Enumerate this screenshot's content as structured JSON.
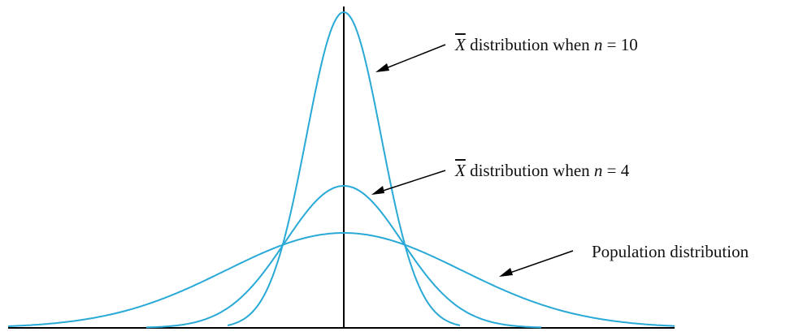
{
  "annotations": [
    {
      "id": "n10",
      "symbol": "X",
      "text": "distribution when",
      "var": "n",
      "eq": "=",
      "value": "10"
    },
    {
      "id": "n4",
      "symbol": "X",
      "text": "distribution when",
      "var": "n",
      "eq": "=",
      "value": "4"
    },
    {
      "id": "pop",
      "text": "Population distribution"
    }
  ],
  "colors": {
    "curve": "#29a9d6",
    "axis": "#000000"
  }
}
